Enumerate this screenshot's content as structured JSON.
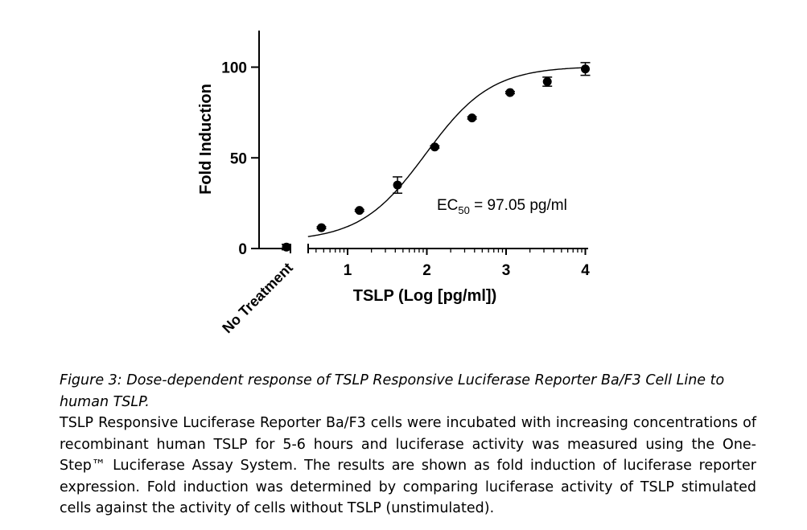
{
  "chart_data": {
    "type": "scatter",
    "title": "",
    "xlabel": "TSLP (Log [pg/ml])",
    "ylabel": "Fold Induction",
    "x_ticks": [
      "1",
      "2",
      "3",
      "4"
    ],
    "y_ticks": [
      "0",
      "50",
      "100"
    ],
    "xlim": [
      0.5,
      4
    ],
    "ylim": [
      0,
      120
    ],
    "no_treatment": {
      "label": "No Treatment",
      "value": 0.8,
      "error": 1.5
    },
    "series": [
      {
        "x": [
          0.67,
          1.15,
          1.63,
          2.1,
          2.57,
          3.05,
          3.52,
          4.0
        ],
        "y": [
          11.5,
          21,
          35,
          56,
          72,
          86,
          92,
          99
        ],
        "error": [
          0.5,
          0.5,
          4.5,
          0.6,
          0.6,
          0.6,
          2.5,
          3.5
        ],
        "fit": "four-parameter logistic"
      }
    ],
    "annotation": {
      "prefix": "EC",
      "subscript": "50",
      "suffix": " = 97.05 pg/ml"
    },
    "axis_break": true,
    "grid": false
  },
  "caption": {
    "title": "Figure 3: Dose-dependent response of TSLP Responsive Luciferase Reporter Ba/F3 Cell Line to human TSLP.",
    "body": "TSLP Responsive Luciferase Reporter Ba/F3 cells were incubated with increasing concentrations of recombinant human TSLP for 5-6 hours and luciferase activity was measured using the One-Step™ Luciferase Assay System. The results are shown as fold induction of luciferase reporter expression. Fold induction was determined by comparing luciferase activity of TSLP stimulated cells against the activity of cells without TSLP (unstimulated)."
  }
}
